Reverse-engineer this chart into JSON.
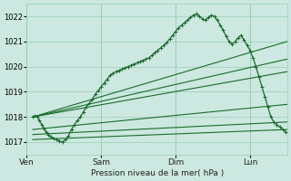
{
  "bg_color": "#cce8e0",
  "plot_bg_color": "#cce8e0",
  "grid_color": "#99ccbb",
  "line_color": "#1a6b2a",
  "xlabel": "Pression niveau de la mer( hPa )",
  "ylim": [
    1016.5,
    1022.5
  ],
  "yticks": [
    1017,
    1018,
    1019,
    1020,
    1021,
    1022
  ],
  "xtick_labels": [
    "Ven",
    "Sam",
    "Dim",
    "Lun"
  ],
  "xtick_positions": [
    0,
    1,
    2,
    3
  ],
  "xlim": [
    0,
    3.5
  ],
  "straight_lines": [
    {
      "x0": 0.08,
      "y0": 1018.0,
      "x1": 3.5,
      "y1": 1021.0
    },
    {
      "x0": 0.08,
      "y0": 1018.0,
      "x1": 3.5,
      "y1": 1020.3
    },
    {
      "x0": 0.08,
      "y0": 1018.0,
      "x1": 3.5,
      "y1": 1019.8
    },
    {
      "x0": 0.08,
      "y0": 1017.5,
      "x1": 3.5,
      "y1": 1018.5
    },
    {
      "x0": 0.08,
      "y0": 1017.3,
      "x1": 3.5,
      "y1": 1017.8
    },
    {
      "x0": 0.08,
      "y0": 1017.1,
      "x1": 3.5,
      "y1": 1017.5
    }
  ],
  "noisy_x": [
    0.08,
    0.11,
    0.14,
    0.17,
    0.2,
    0.23,
    0.26,
    0.29,
    0.32,
    0.36,
    0.4,
    0.44,
    0.48,
    0.52,
    0.56,
    0.6,
    0.64,
    0.68,
    0.72,
    0.76,
    0.8,
    0.84,
    0.88,
    0.92,
    0.96,
    1.0,
    1.04,
    1.08,
    1.12,
    1.16,
    1.2,
    1.24,
    1.28,
    1.32,
    1.36,
    1.4,
    1.44,
    1.48,
    1.52,
    1.56,
    1.6,
    1.64,
    1.68,
    1.72,
    1.76,
    1.8,
    1.84,
    1.88,
    1.92,
    1.96,
    2.0,
    2.04,
    2.08,
    2.12,
    2.16,
    2.2,
    2.24,
    2.28,
    2.32,
    2.36,
    2.4,
    2.44,
    2.48,
    2.52,
    2.56,
    2.6,
    2.64,
    2.68,
    2.72,
    2.76,
    2.8,
    2.84,
    2.88,
    2.92,
    2.96,
    3.0,
    3.04,
    3.08,
    3.12,
    3.16,
    3.2,
    3.24,
    3.28,
    3.32,
    3.36,
    3.4,
    3.44,
    3.48
  ],
  "noisy_y": [
    1018.0,
    1018.05,
    1018.0,
    1017.85,
    1017.7,
    1017.55,
    1017.4,
    1017.3,
    1017.2,
    1017.15,
    1017.1,
    1017.05,
    1017.0,
    1017.1,
    1017.25,
    1017.5,
    1017.7,
    1017.85,
    1018.0,
    1018.2,
    1018.4,
    1018.55,
    1018.7,
    1018.9,
    1019.05,
    1019.2,
    1019.35,
    1019.5,
    1019.65,
    1019.75,
    1019.8,
    1019.85,
    1019.9,
    1019.95,
    1020.0,
    1020.05,
    1020.1,
    1020.15,
    1020.2,
    1020.25,
    1020.3,
    1020.35,
    1020.45,
    1020.55,
    1020.65,
    1020.75,
    1020.85,
    1020.95,
    1021.1,
    1021.25,
    1021.4,
    1021.55,
    1021.65,
    1021.75,
    1021.85,
    1021.95,
    1022.05,
    1022.1,
    1022.0,
    1021.9,
    1021.85,
    1021.95,
    1022.05,
    1022.0,
    1021.85,
    1021.65,
    1021.45,
    1021.2,
    1021.0,
    1020.9,
    1021.0,
    1021.15,
    1021.25,
    1021.05,
    1020.85,
    1020.65,
    1020.35,
    1020.0,
    1019.6,
    1019.2,
    1018.8,
    1018.4,
    1018.0,
    1017.8,
    1017.7,
    1017.6,
    1017.5,
    1017.4
  ]
}
